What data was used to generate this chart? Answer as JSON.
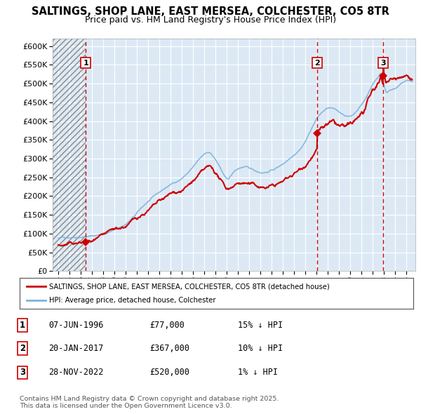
{
  "title": "SALTINGS, SHOP LANE, EAST MERSEA, COLCHESTER, CO5 8TR",
  "subtitle": "Price paid vs. HM Land Registry's House Price Index (HPI)",
  "ylim": [
    0,
    620000
  ],
  "yticks": [
    0,
    50000,
    100000,
    150000,
    200000,
    250000,
    300000,
    350000,
    400000,
    450000,
    500000,
    550000,
    600000
  ],
  "xlim_start": 1993.5,
  "xlim_end": 2025.8,
  "bg_color": "#dce9f5",
  "grid_color": "#ffffff",
  "hpi_color": "#7fb3d9",
  "price_color": "#cc0000",
  "dashed_line_color": "#cc0000",
  "marker_color": "#cc0000",
  "sales": [
    {
      "label": "1",
      "date_num": 1996.44,
      "price": 77000
    },
    {
      "label": "2",
      "date_num": 2017.05,
      "price": 367000
    },
    {
      "label": "3",
      "date_num": 2022.91,
      "price": 520000
    }
  ],
  "legend_price_label": "SALTINGS, SHOP LANE, EAST MERSEA, COLCHESTER, CO5 8TR (detached house)",
  "legend_hpi_label": "HPI: Average price, detached house, Colchester",
  "table_rows": [
    {
      "num": "1",
      "date": "07-JUN-1996",
      "price": "£77,000",
      "pct": "15% ↓ HPI"
    },
    {
      "num": "2",
      "date": "20-JAN-2017",
      "price": "£367,000",
      "pct": "10% ↓ HPI"
    },
    {
      "num": "3",
      "date": "28-NOV-2022",
      "price": "£520,000",
      "pct": "1% ↓ HPI"
    }
  ],
  "footer": "Contains HM Land Registry data © Crown copyright and database right 2025.\nThis data is licensed under the Open Government Licence v3.0."
}
